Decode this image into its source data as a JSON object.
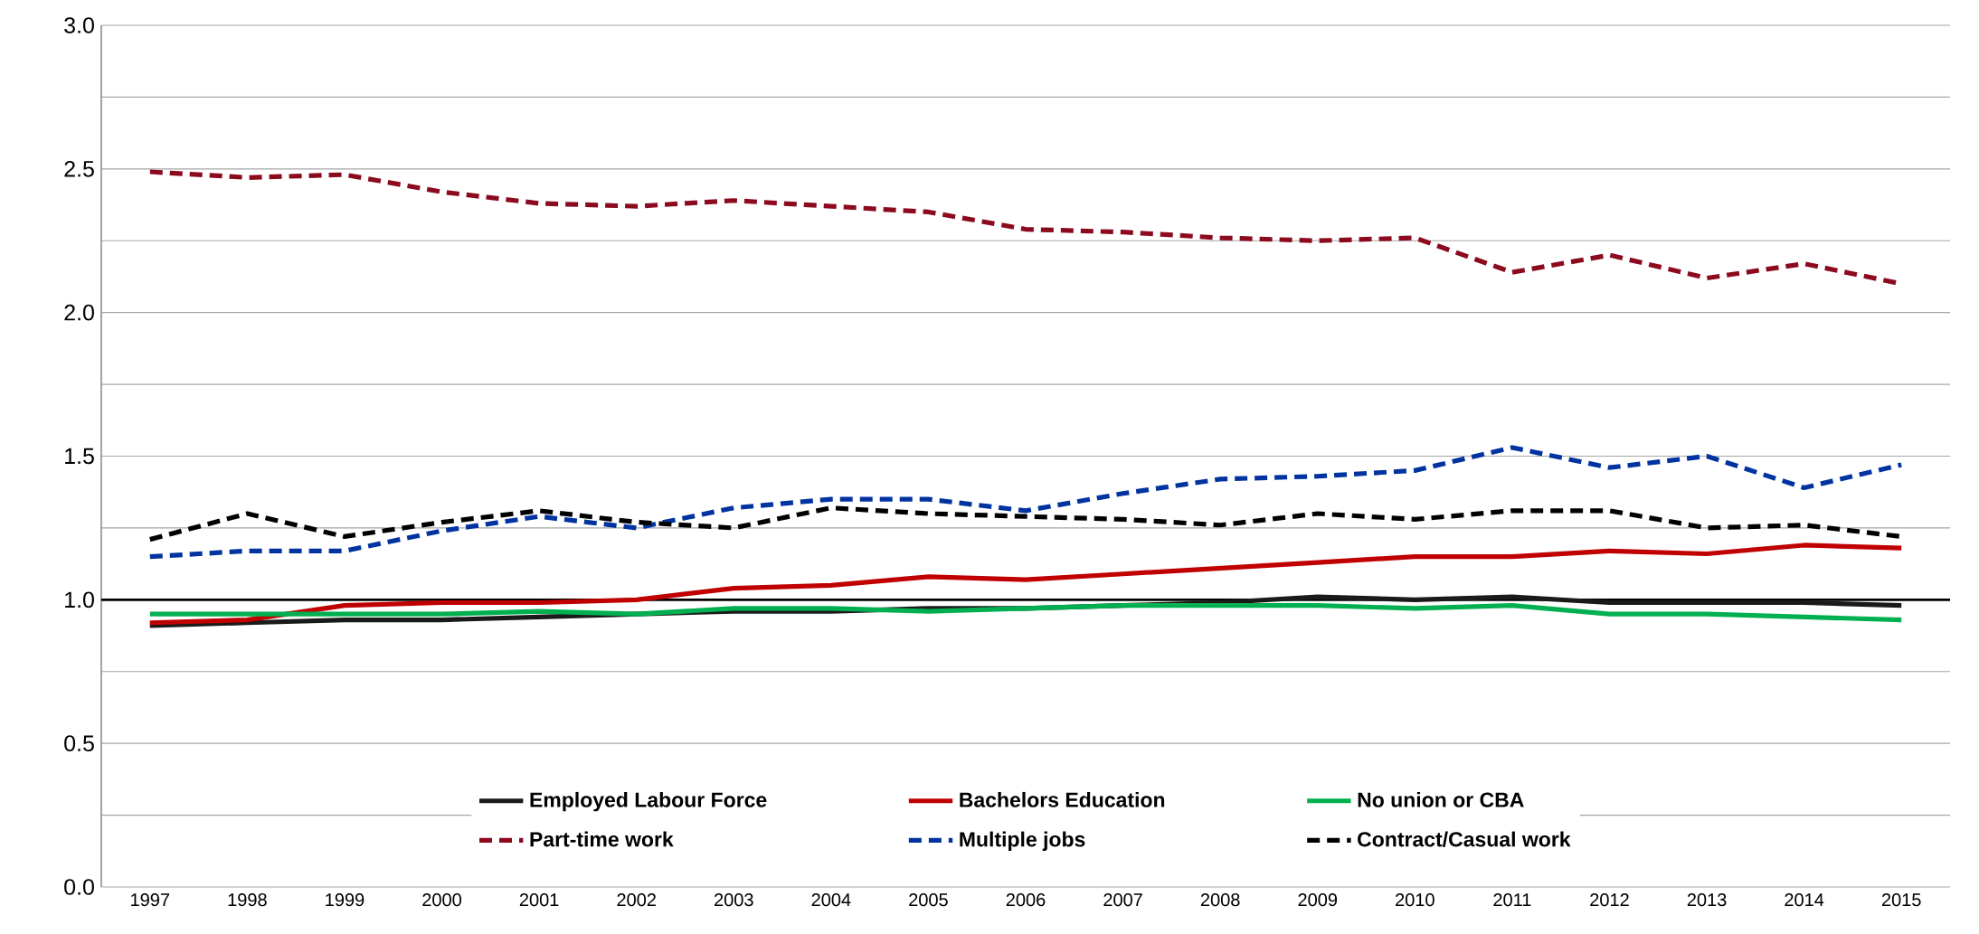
{
  "chart_data": {
    "type": "line",
    "categories": [
      "1997",
      "1998",
      "1999",
      "2000",
      "2001",
      "2002",
      "2003",
      "2004",
      "2005",
      "2006",
      "2007",
      "2008",
      "2009",
      "2010",
      "2011",
      "2012",
      "2013",
      "2014",
      "2015"
    ],
    "series": [
      {
        "name": "Employed Labour Force",
        "color": "#1a1a1a",
        "line_style": "solid",
        "values": [
          0.91,
          0.92,
          0.93,
          0.93,
          0.94,
          0.95,
          0.96,
          0.96,
          0.97,
          0.97,
          0.98,
          0.99,
          1.01,
          1.0,
          1.01,
          0.99,
          0.99,
          0.99,
          0.98
        ]
      },
      {
        "name": "Bachelors Education",
        "color": "#c00000",
        "line_style": "solid",
        "values": [
          0.92,
          0.93,
          0.98,
          0.99,
          0.99,
          1.0,
          1.04,
          1.05,
          1.08,
          1.07,
          1.09,
          1.11,
          1.13,
          1.15,
          1.15,
          1.17,
          1.16,
          1.19,
          1.18
        ]
      },
      {
        "name": "No union or CBA",
        "color": "#00b050",
        "line_style": "solid",
        "values": [
          0.95,
          0.95,
          0.95,
          0.95,
          0.96,
          0.95,
          0.97,
          0.97,
          0.96,
          0.97,
          0.98,
          0.98,
          0.98,
          0.97,
          0.98,
          0.95,
          0.95,
          0.94,
          0.93
        ]
      },
      {
        "name": "Part-time work",
        "color": "#8b0a1e",
        "line_style": "dashed",
        "values": [
          2.49,
          2.47,
          2.48,
          2.42,
          2.38,
          2.37,
          2.39,
          2.37,
          2.35,
          2.29,
          2.28,
          2.26,
          2.25,
          2.26,
          2.14,
          2.2,
          2.12,
          2.17,
          2.1
        ]
      },
      {
        "name": "Multiple jobs",
        "color": "#0033a0",
        "line_style": "dashed",
        "values": [
          1.15,
          1.17,
          1.17,
          1.24,
          1.29,
          1.25,
          1.32,
          1.35,
          1.35,
          1.31,
          1.37,
          1.42,
          1.43,
          1.45,
          1.53,
          1.46,
          1.5,
          1.39,
          1.47
        ]
      },
      {
        "name": "Contract/Casual work",
        "color": "#000000",
        "line_style": "dashed",
        "values": [
          1.21,
          1.3,
          1.22,
          1.27,
          1.31,
          1.27,
          1.25,
          1.32,
          1.3,
          1.29,
          1.28,
          1.26,
          1.3,
          1.28,
          1.31,
          1.31,
          1.25,
          1.26,
          1.22
        ]
      }
    ],
    "ylim": [
      0,
      3
    ],
    "yticks": [
      {
        "value": 0,
        "label": "0.0"
      },
      {
        "value": 0.25,
        "label": null
      },
      {
        "value": 0.5,
        "label": "0.5"
      },
      {
        "value": 0.75,
        "label": null
      },
      {
        "value": 1,
        "label": "1.0"
      },
      {
        "value": 1.25,
        "label": null
      },
      {
        "value": 1.5,
        "label": "1.5"
      },
      {
        "value": 1.75,
        "label": null
      },
      {
        "value": 2,
        "label": "2.0"
      },
      {
        "value": 2.25,
        "label": null
      },
      {
        "value": 2.5,
        "label": "2.5"
      },
      {
        "value": 2.75,
        "label": null
      },
      {
        "value": 3,
        "label": "3.0"
      }
    ],
    "ref_lines": [
      {
        "axis": "y",
        "value": 1,
        "color": "#000000"
      }
    ],
    "grid": "y",
    "legend": "bottom",
    "marker": "none"
  }
}
